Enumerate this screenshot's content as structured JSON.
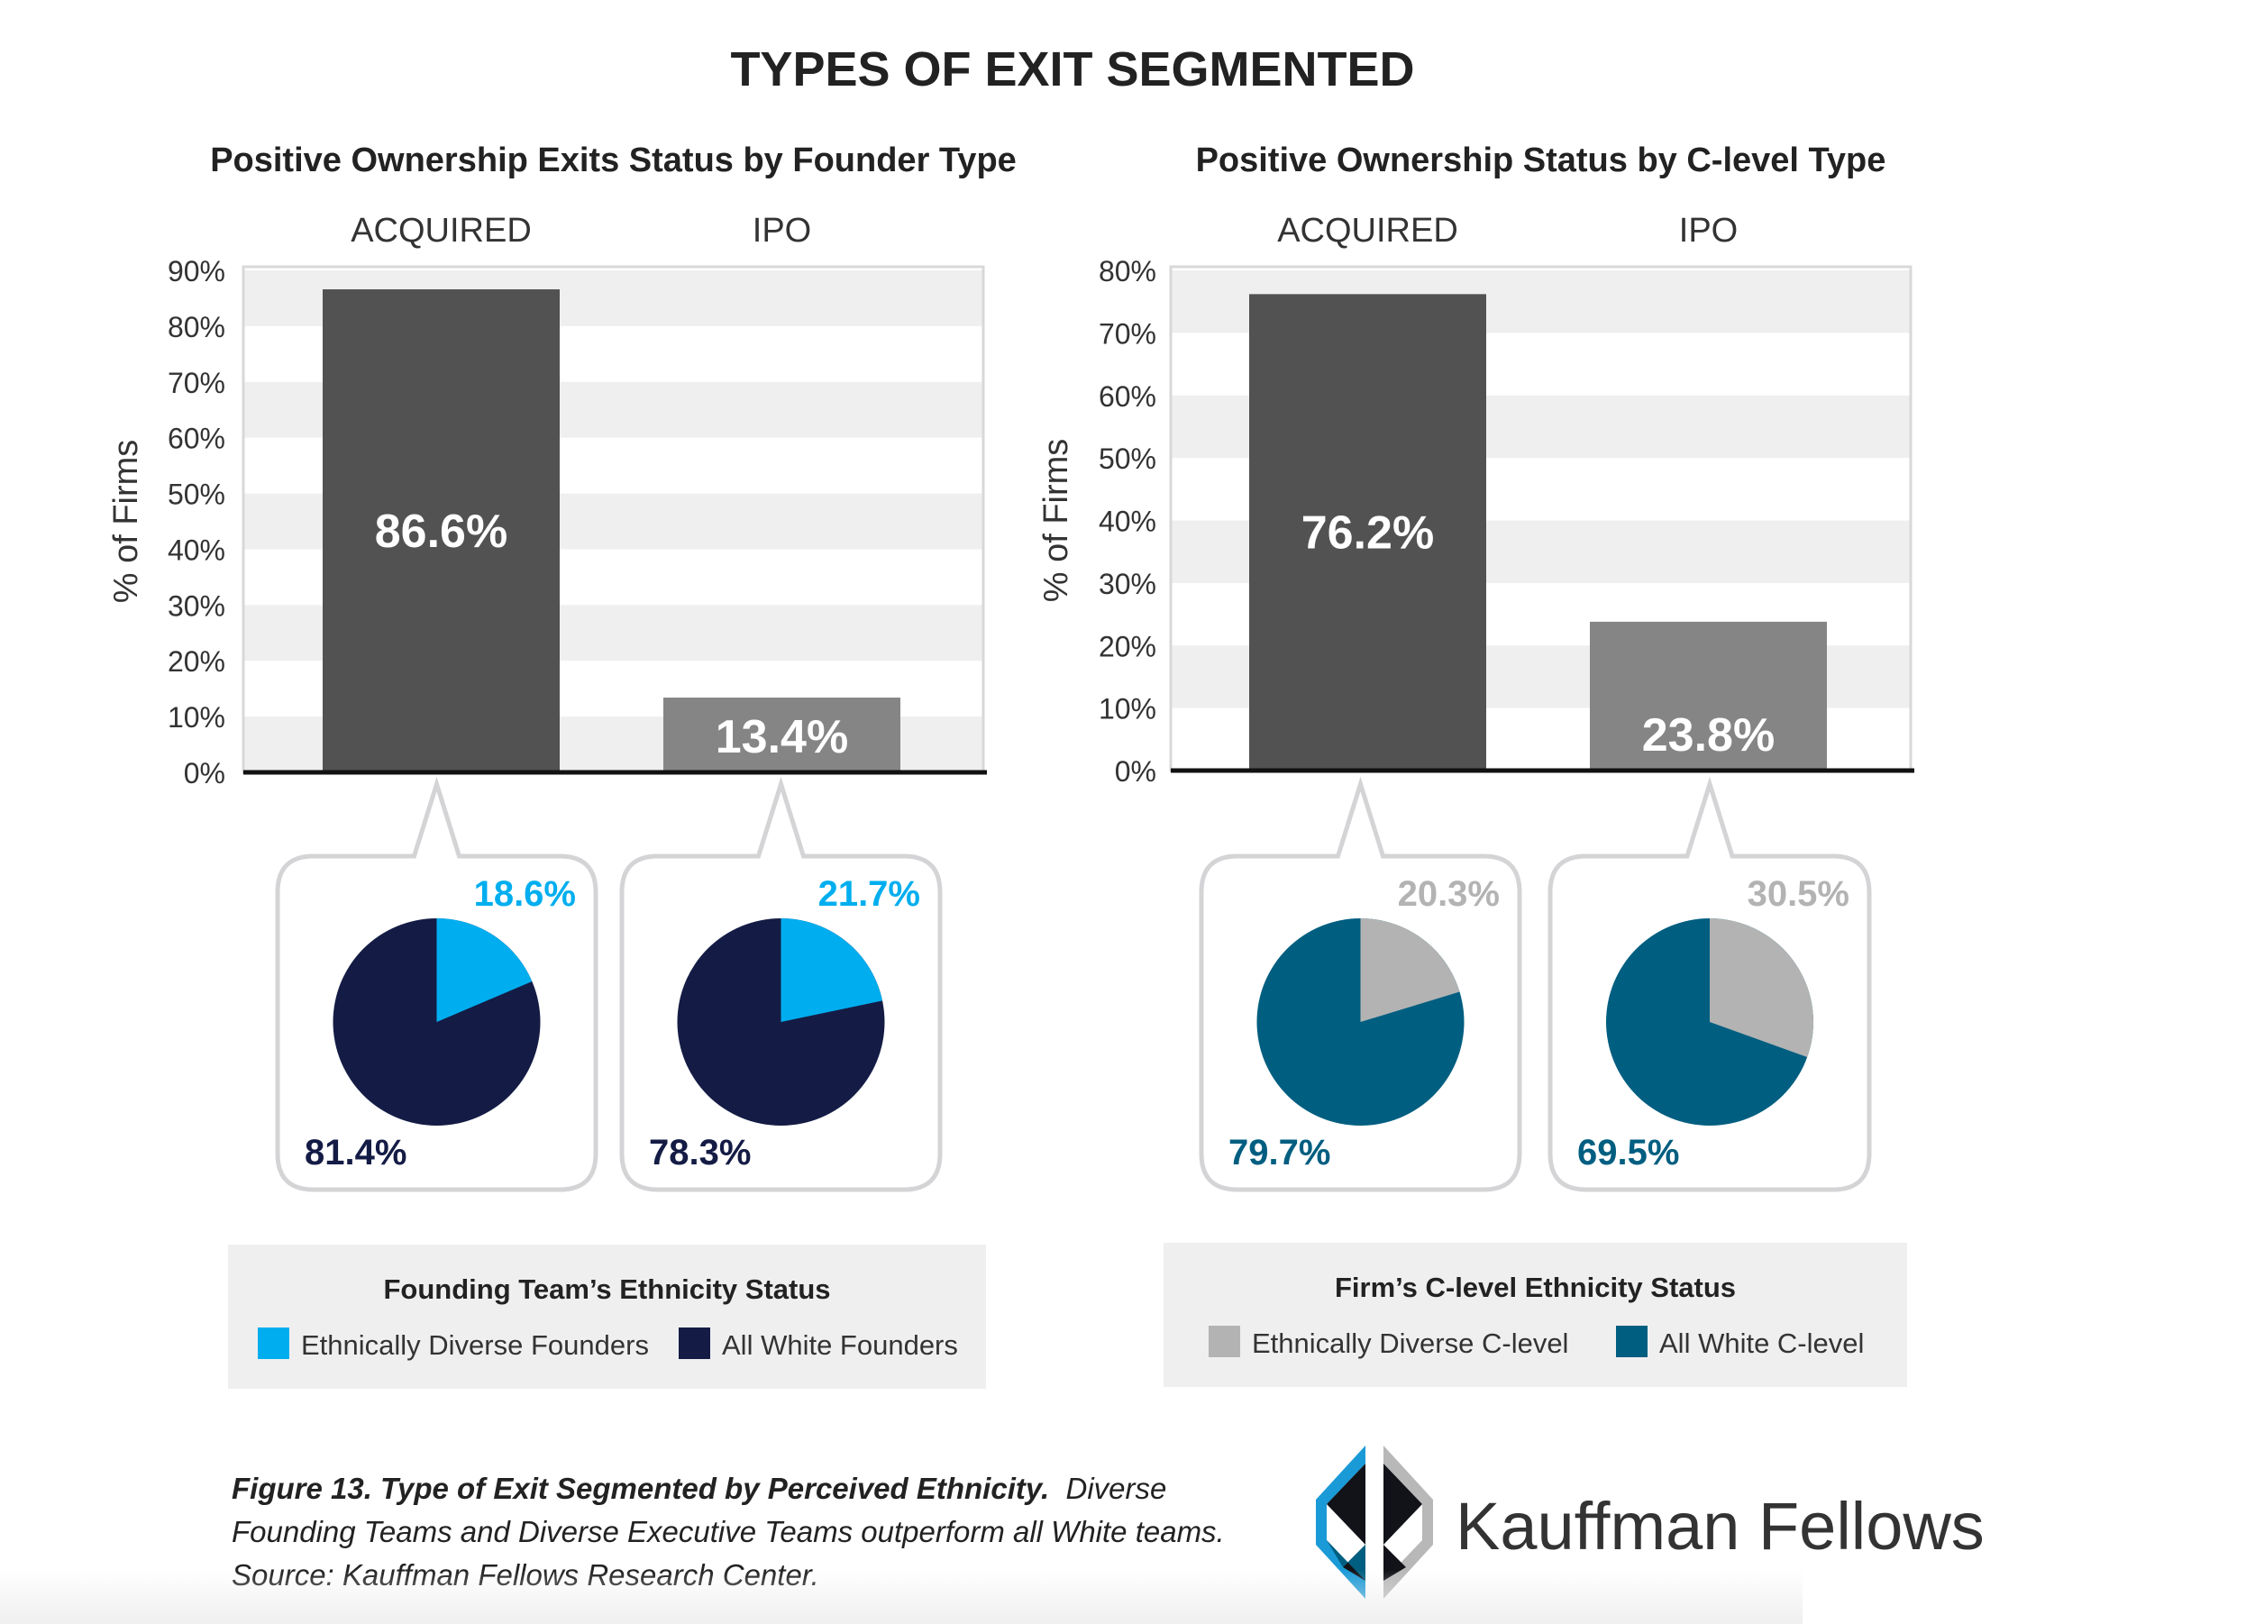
{
  "title": "TYPES OF EXIT SEGMENTED",
  "chart_data": [
    {
      "type": "bar",
      "title": "Positive Ownership Exits Status by Founder Type",
      "ylabel": "% of Firms",
      "categories": [
        "ACQUIRED",
        "IPO"
      ],
      "values": [
        86.6,
        13.4
      ],
      "value_labels": [
        "86.6%",
        "13.4%"
      ],
      "bar_colors": [
        "#525252",
        "#858585"
      ],
      "ylim": [
        0,
        90
      ],
      "yticks": [
        "0%",
        "10%",
        "20%",
        "30%",
        "40%",
        "50%",
        "60%",
        "70%",
        "80%",
        "90%"
      ],
      "grid": "alternating bands",
      "pies": [
        {
          "type": "pie",
          "category": "ACQUIRED",
          "values": [
            18.6,
            81.4
          ],
          "labels": [
            "18.6%",
            "81.4%"
          ]
        },
        {
          "type": "pie",
          "category": "IPO",
          "values": [
            21.7,
            78.3
          ],
          "labels": [
            "21.7%",
            "78.3%"
          ]
        }
      ],
      "pie_colors": [
        "#00aeef",
        "#141c45"
      ],
      "legend": {
        "title": "Founding Team’s Ethnicity Status",
        "placement": "bottom",
        "items": [
          "Ethnically Diverse Founders",
          "All White Founders"
        ]
      }
    },
    {
      "type": "bar",
      "title": "Positive Ownership Status by C-level Type",
      "ylabel": "% of Firms",
      "categories": [
        "ACQUIRED",
        "IPO"
      ],
      "values": [
        76.2,
        23.8
      ],
      "value_labels": [
        "76.2%",
        "23.8%"
      ],
      "bar_colors": [
        "#525252",
        "#858585"
      ],
      "ylim": [
        0,
        80
      ],
      "yticks": [
        "0%",
        "10%",
        "20%",
        "30%",
        "40%",
        "50%",
        "60%",
        "70%",
        "80%"
      ],
      "grid": "alternating bands",
      "pies": [
        {
          "type": "pie",
          "category": "ACQUIRED",
          "values": [
            20.3,
            79.7
          ],
          "labels": [
            "20.3%",
            "79.7%"
          ]
        },
        {
          "type": "pie",
          "category": "IPO",
          "values": [
            30.5,
            69.5
          ],
          "labels": [
            "30.5%",
            "69.5%"
          ]
        }
      ],
      "pie_colors": [
        "#b3b3b3",
        "#005e80"
      ],
      "legend": {
        "title": "Firm’s C-level Ethnicity Status",
        "placement": "bottom",
        "items": [
          "Ethnically Diverse C-level",
          "All White C-level"
        ]
      }
    }
  ],
  "caption": {
    "bold": "Figure 13. Type of Exit Segmented by Perceived Ethnicity.",
    "text": "Diverse Founding Teams and Diverse Executive Teams outperform all White teams. Source: Kauffman Fellows Research Center."
  },
  "logo": {
    "text": "Kauffman Fellows"
  }
}
